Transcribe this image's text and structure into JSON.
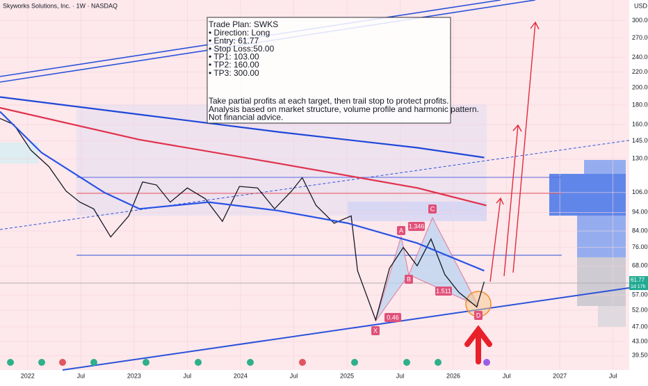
{
  "header": {
    "title": "Skyworks Solutions, Inc. · 1W · NASDAQ",
    "currency": "USD"
  },
  "chart_data": {
    "type": "line",
    "log_scale": true,
    "grid": true,
    "xlim": [
      2021.74,
      2027.62
    ],
    "ylim": [
      36.5,
      340
    ],
    "xticks": [
      2022,
      {
        "value": 2022.5,
        "label": "Jul"
      },
      2023,
      {
        "value": 2023.5,
        "label": "Jul"
      },
      2024,
      {
        "value": 2024.5,
        "label": "Jul"
      },
      2025,
      {
        "value": 2025.5,
        "label": "Jul"
      },
      2026,
      {
        "value": 2026.5,
        "label": "Jul"
      },
      2027,
      {
        "value": 2027.5,
        "label": "Jul"
      }
    ],
    "yticks": [
      {
        "value": 300,
        "label": "300.00"
      },
      {
        "value": 270,
        "label": "270.00"
      },
      {
        "value": 240,
        "label": "240.00"
      },
      {
        "value": 220,
        "label": "220.00"
      },
      {
        "value": 200,
        "label": "200.00"
      },
      {
        "value": 180,
        "label": "180.00"
      },
      {
        "value": 160,
        "label": "160.00"
      },
      {
        "value": 145,
        "label": "145.00"
      },
      {
        "value": 130,
        "label": "130.00"
      },
      {
        "value": 106,
        "label": "106.00"
      },
      {
        "value": 94,
        "label": "94.00"
      },
      {
        "value": 84,
        "label": "84.00"
      },
      {
        "value": 76,
        "label": "76.00"
      },
      {
        "value": 68,
        "label": "68.00"
      },
      {
        "value": 57,
        "label": "57.00"
      },
      {
        "value": 52,
        "label": "52.00"
      },
      {
        "value": 47,
        "label": "47.00"
      },
      {
        "value": 43,
        "label": "43.00"
      },
      {
        "value": 39.5,
        "label": "39.50"
      }
    ],
    "series": [
      {
        "color": "#131722",
        "x": [
          2021.74,
          2021.87,
          2022.03,
          2022.2,
          2022.36,
          2022.49,
          2022.62,
          2022.78,
          2022.95,
          2023.08,
          2023.21,
          2023.34,
          2023.5,
          2023.67,
          2023.83,
          2023.99,
          2024.16,
          2024.32,
          2024.48,
          2024.58,
          2024.71,
          2024.88,
          2025.04,
          2025.1,
          2025.27,
          2025.4,
          2025.53,
          2025.66,
          2025.79,
          2025.92,
          2026.05,
          2026.22,
          2026.29
        ],
        "values": [
          166,
          160,
          137,
          124,
          107,
          100,
          96,
          81,
          92,
          113,
          111,
          100,
          109,
          102,
          89,
          110,
          109,
          96,
          107,
          116,
          98,
          88,
          92,
          66,
          49,
          67,
          76,
          68,
          80,
          64.5,
          58,
          53,
          61.77
        ]
      },
      {
        "color": "#2952e3",
        "x": [
          2021.74,
          2022.13,
          2022.72,
          2023.05,
          2023.7,
          2024.35,
          2025.01,
          2025.66,
          2026.29
        ],
        "values": [
          173,
          135,
          106,
          96,
          100,
          95,
          88,
          78,
          66
        ]
      },
      {
        "color": "#e0314b",
        "x": [
          2021.74,
          2023.05,
          2024.35,
          2025.66,
          2026.31
        ],
        "values": [
          177,
          146,
          126.5,
          109,
          98
        ]
      },
      {
        "color": "#1f47d8",
        "x": [
          2021.74,
          2023.05,
          2024.35,
          2025.66,
          2026.29
        ],
        "values": [
          189,
          170,
          153,
          139,
          131
        ]
      }
    ],
    "last_price": 61.77,
    "countdown": "1d 17h",
    "trade_plan": [
      "Trade Plan: SWKS",
      "• Direction: Long",
      "• Entry: 61.77",
      "• Stop Loss:50.00",
      "• TP1: 103.00",
      "• TP2: 160.00",
      "• TP3: 300.00"
    ],
    "note": [
      "Take partial profits at each target, then trail stop to protect profits.",
      "Analysis based on market structure, volume profile and harmonic pattern.",
      "Not financial advice."
    ],
    "pattern_labels": [
      "X",
      "A",
      "B",
      "C",
      "D"
    ],
    "ratio_labels": [
      "0.46",
      "1.346",
      "1.511"
    ]
  }
}
